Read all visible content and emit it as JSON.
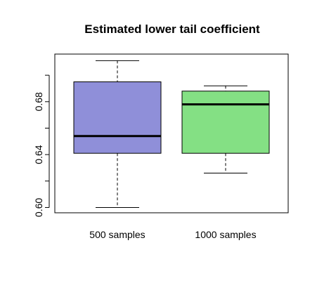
{
  "chart_data": {
    "type": "boxplot",
    "title": "Estimated lower tail coefficient",
    "xlabel": "",
    "ylabel": "",
    "ylim": [
      0.596,
      0.716
    ],
    "y_ticks": [
      0.6,
      0.62,
      0.64,
      0.66,
      0.68,
      0.7
    ],
    "y_tick_labels": [
      "0.60",
      "",
      "0.64",
      "",
      "0.68",
      ""
    ],
    "grid": false,
    "categories": [
      "500 samples",
      "1000 samples"
    ],
    "boxes": [
      {
        "category": "500 samples",
        "whisker_low": 0.6,
        "q1": 0.641,
        "median": 0.654,
        "q3": 0.695,
        "whisker_high": 0.711,
        "fill": "#8f8fd9"
      },
      {
        "category": "1000 samples",
        "whisker_low": 0.626,
        "q1": 0.641,
        "median": 0.678,
        "q3": 0.688,
        "whisker_high": 0.692,
        "fill": "#84e084"
      }
    ]
  }
}
